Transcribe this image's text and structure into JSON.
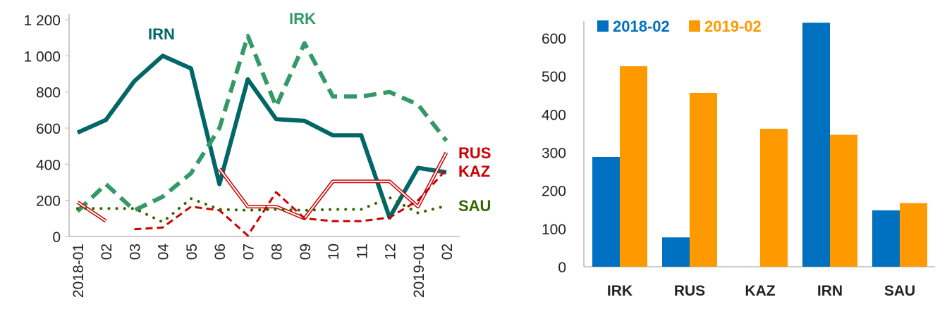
{
  "chart_data": [
    {
      "type": "line",
      "title": "",
      "xlabel": "",
      "ylabel": "",
      "ylim": [
        0,
        1200
      ],
      "yticks": [
        "0",
        "200",
        "400",
        "600",
        "800",
        "1 000",
        "1 200"
      ],
      "ytick_values": [
        0,
        200,
        400,
        600,
        800,
        1000,
        1200
      ],
      "categories": [
        "2018-01",
        "02",
        "03",
        "04",
        "05",
        "06",
        "07",
        "08",
        "09",
        "10",
        "11",
        "12",
        "2019-01",
        "02"
      ],
      "series": [
        {
          "name": "IRN",
          "style": "solid",
          "color": "#006666",
          "values": [
            575,
            645,
            860,
            1000,
            930,
            290,
            870,
            650,
            640,
            560,
            560,
            105,
            380,
            355
          ]
        },
        {
          "name": "IRK",
          "style": "dashed",
          "color": "#339966",
          "values": [
            140,
            290,
            145,
            220,
            350,
            600,
            1110,
            720,
            1070,
            775,
            775,
            800,
            730,
            530
          ]
        },
        {
          "name": "RUS",
          "style": "double",
          "color": "#CC0000",
          "values": [
            190,
            85,
            null,
            null,
            null,
            375,
            165,
            165,
            100,
            305,
            305,
            305,
            165,
            465
          ]
        },
        {
          "name": "KAZ",
          "style": "dashed-thin",
          "color": "#CC0000",
          "values": [
            null,
            null,
            40,
            50,
            165,
            145,
            5,
            245,
            100,
            85,
            85,
            105,
            200,
            370
          ]
        },
        {
          "name": "SAU",
          "style": "dotted",
          "color": "#336600",
          "values": [
            155,
            155,
            155,
            80,
            210,
            150,
            145,
            150,
            145,
            150,
            150,
            215,
            130,
            170
          ]
        }
      ],
      "legend": "inline labels"
    },
    {
      "type": "bar",
      "title": "",
      "xlabel": "",
      "ylabel": "",
      "ylim": [
        0,
        650
      ],
      "yticks": [
        "0",
        "100",
        "200",
        "300",
        "400",
        "500",
        "600"
      ],
      "ytick_values": [
        0,
        100,
        200,
        300,
        400,
        500,
        600
      ],
      "categories": [
        "IRK",
        "RUS",
        "KAZ",
        "IRN",
        "SAU"
      ],
      "series": [
        {
          "name": "2018-02",
          "color": "#0070C0",
          "values": [
            288,
            77,
            0,
            640,
            148
          ]
        },
        {
          "name": "2019-02",
          "color": "#FF9900",
          "values": [
            526,
            456,
            362,
            346,
            167
          ]
        }
      ],
      "legend": "top-left"
    }
  ]
}
